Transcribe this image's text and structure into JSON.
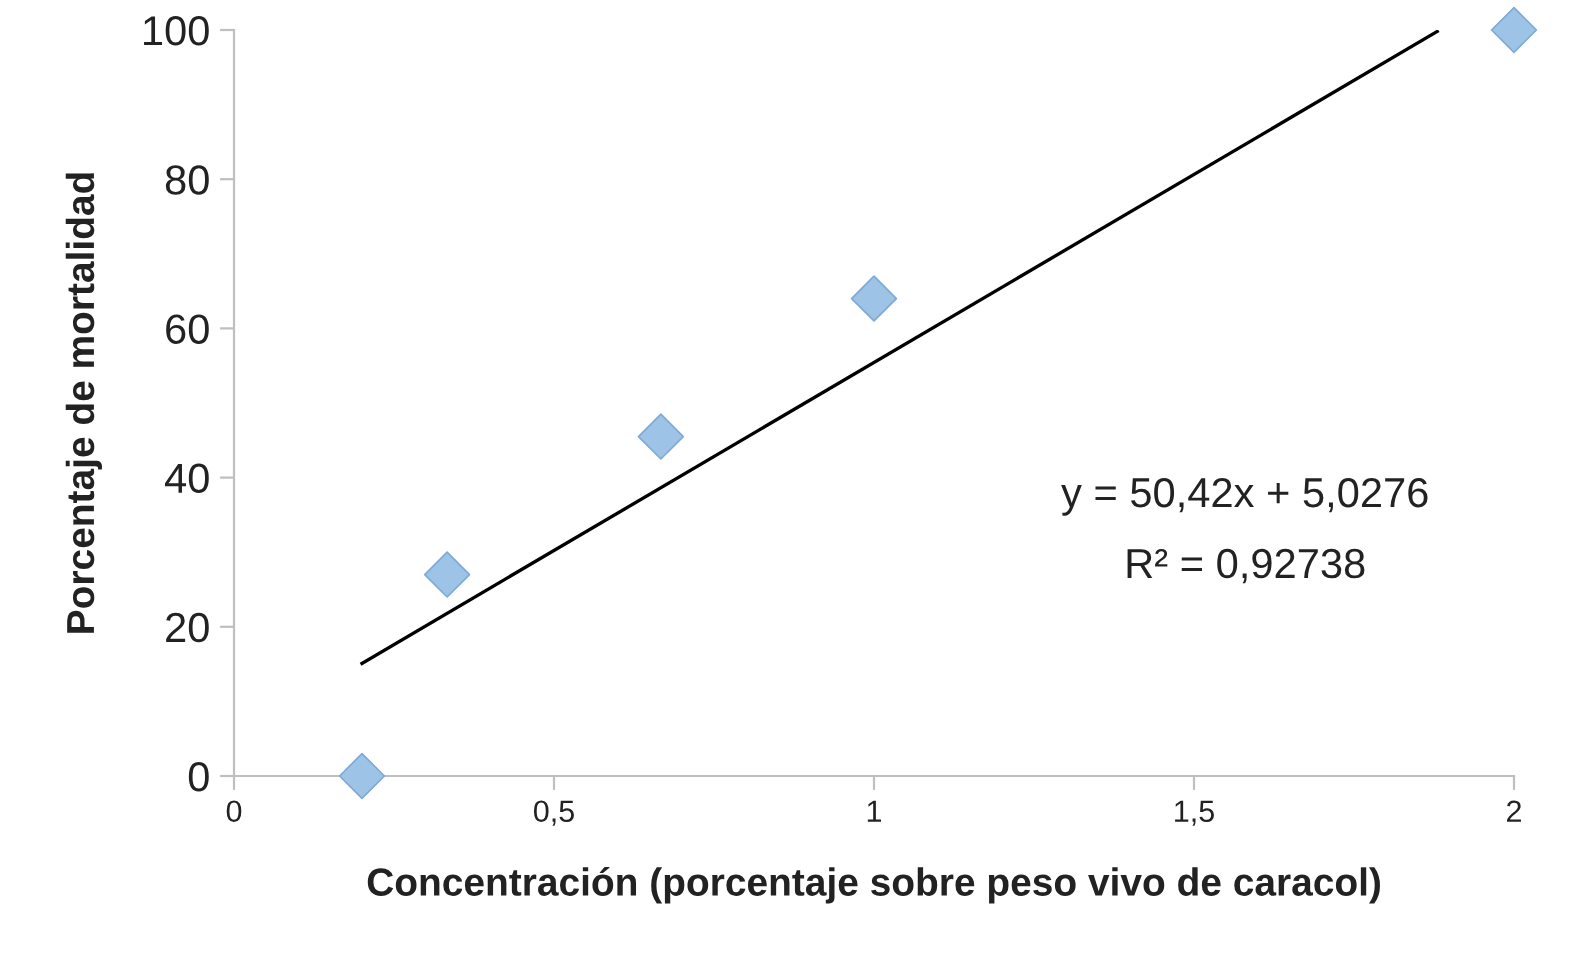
{
  "chart_data": {
    "type": "scatter",
    "xlabel": "Concentración (porcentaje sobre peso vivo de caracol)",
    "ylabel": "Porcentaje de mortalidad",
    "series": [
      {
        "color": "#9dc3e6",
        "marker": "diamond",
        "x": [
          0.2,
          0.333,
          0.667,
          1,
          2
        ],
        "values": [
          0,
          27,
          45.5,
          64,
          100
        ]
      },
      {
        "type": "line",
        "color": "#000000",
        "marker": "none",
        "line_style": "solid",
        "x": [
          0.2,
          1.88
        ],
        "values": [
          15.1,
          99.8
        ]
      }
    ],
    "annotations": [
      "y = 50,42x + 5,0276",
      "R² = 0,92738"
    ],
    "xlim": [
      0,
      2
    ],
    "ylim": [
      0,
      100
    ],
    "xticks": [
      0,
      {
        "value": 0.5,
        "label": "0,5"
      },
      1,
      {
        "value": 1.5,
        "label": "1,5"
      },
      2
    ],
    "yticks": [
      0,
      20,
      40,
      60,
      80,
      100
    ],
    "grid": false,
    "legend": false
  }
}
